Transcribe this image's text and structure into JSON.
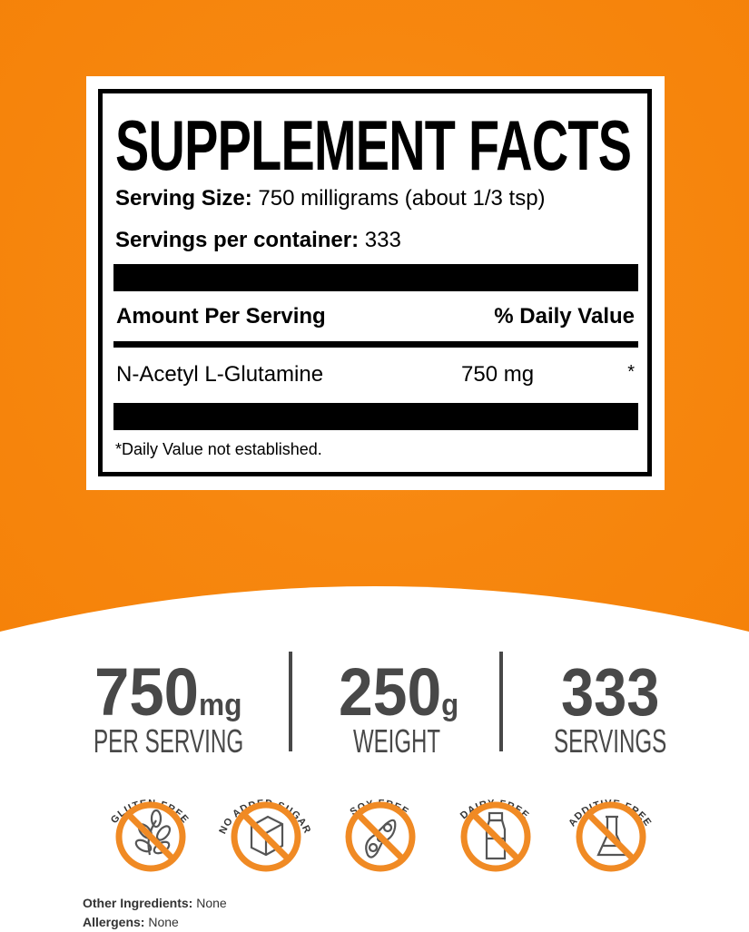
{
  "label": {
    "title": "SUPPLEMENT FACTS",
    "serving_size_label": "Serving Size:",
    "serving_size_value": "750 milligrams (about 1/3 tsp)",
    "servings_label": "Servings per container:",
    "servings_value": "333",
    "amount_header": "Amount Per Serving",
    "dv_header": "% Daily Value",
    "ingredient": {
      "name": "N-Acetyl L-Glutamine",
      "amount": "750 mg",
      "dv": "*"
    },
    "footnote": "*Daily Value not established."
  },
  "stats": [
    {
      "value": "750",
      "unit": "mg",
      "label": "PER SERVING"
    },
    {
      "value": "250",
      "unit": "g",
      "label": "WEIGHT"
    },
    {
      "value": "333",
      "unit": "",
      "label": "SERVINGS"
    }
  ],
  "badges": [
    {
      "text": "GLUTEN FREE",
      "icon": "wheat-icon"
    },
    {
      "text": "NO ADDED SUGAR",
      "icon": "sugar-cube-icon"
    },
    {
      "text": "SOY FREE",
      "icon": "soybean-icon"
    },
    {
      "text": "DAIRY FREE",
      "icon": "milk-bottle-icon"
    },
    {
      "text": "ADDITIVE FREE",
      "icon": "flask-icon"
    }
  ],
  "footer": {
    "other_label": "Other Ingredients:",
    "other_value": "None",
    "allergens_label": "Allergens:",
    "allergens_value": "None"
  },
  "colors": {
    "orange": "#f7870f",
    "badge_orange": "#f08a24",
    "text_gray": "#484848"
  }
}
